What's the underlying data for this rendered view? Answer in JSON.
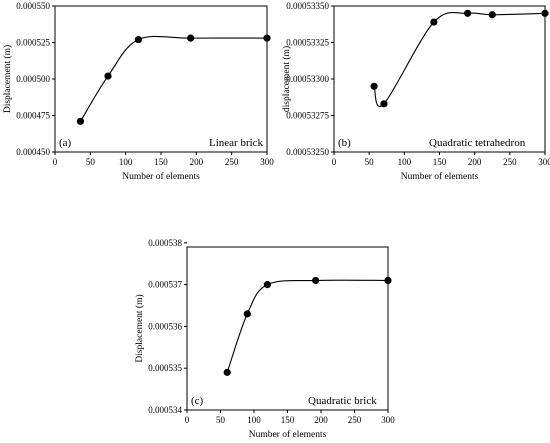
{
  "chart_data": [
    {
      "type": "line",
      "panel_tag": "(a)",
      "panel_name": "Linear brick",
      "xlabel": "Number of elements",
      "ylabel": "Displacement (m)",
      "xlim": [
        0,
        300
      ],
      "ylim": [
        0.00045,
        0.00055
      ],
      "xticks": [
        "0",
        "50",
        "100",
        "150",
        "200",
        "250",
        "300"
      ],
      "yticks": [
        "0.000450",
        "0.000475",
        "0.000500",
        "0.000525",
        "0.000550"
      ],
      "x": [
        36,
        75,
        118,
        192,
        300
      ],
      "y": [
        0.000471,
        0.000502,
        0.000527,
        0.000528,
        0.000528
      ],
      "grid": false
    },
    {
      "type": "line",
      "panel_tag": "(b)",
      "panel_name": "Quadratic tetrahedron",
      "xlabel": "Number of elements",
      "ylabel": "displacement (m)",
      "xlim": [
        0,
        300
      ],
      "ylim": [
        0.0005325,
        0.0005335
      ],
      "xticks": [
        "0",
        "50",
        "100",
        "150",
        "200",
        "250",
        "300"
      ],
      "yticks": [
        "0.00053250",
        "0.00053275",
        "0.00053300",
        "0.00053325",
        "0.00053350"
      ],
      "x": [
        57,
        71,
        142,
        190,
        225,
        300
      ],
      "y": [
        0.00053295,
        0.00053283,
        0.00053339,
        0.00053345,
        0.00053344,
        0.00053345
      ],
      "grid": false
    },
    {
      "type": "line",
      "panel_tag": "(c)",
      "panel_name": "Quadratic brick",
      "xlabel": "Number of elements",
      "ylabel": "Displacement (m)",
      "xlim": [
        0,
        300
      ],
      "ylim": [
        0.000534,
        0.0005379
      ],
      "xticks": [
        "0",
        "50",
        "100",
        "150",
        "200",
        "250",
        "300"
      ],
      "yticks": [
        "0.000534",
        "0.000535",
        "0.000536",
        "0.000537",
        "0.000538"
      ],
      "x": [
        60,
        90,
        120,
        192,
        300
      ],
      "y": [
        0.0005349,
        0.0005363,
        0.000537,
        0.0005371,
        0.0005371
      ],
      "grid": false
    }
  ]
}
